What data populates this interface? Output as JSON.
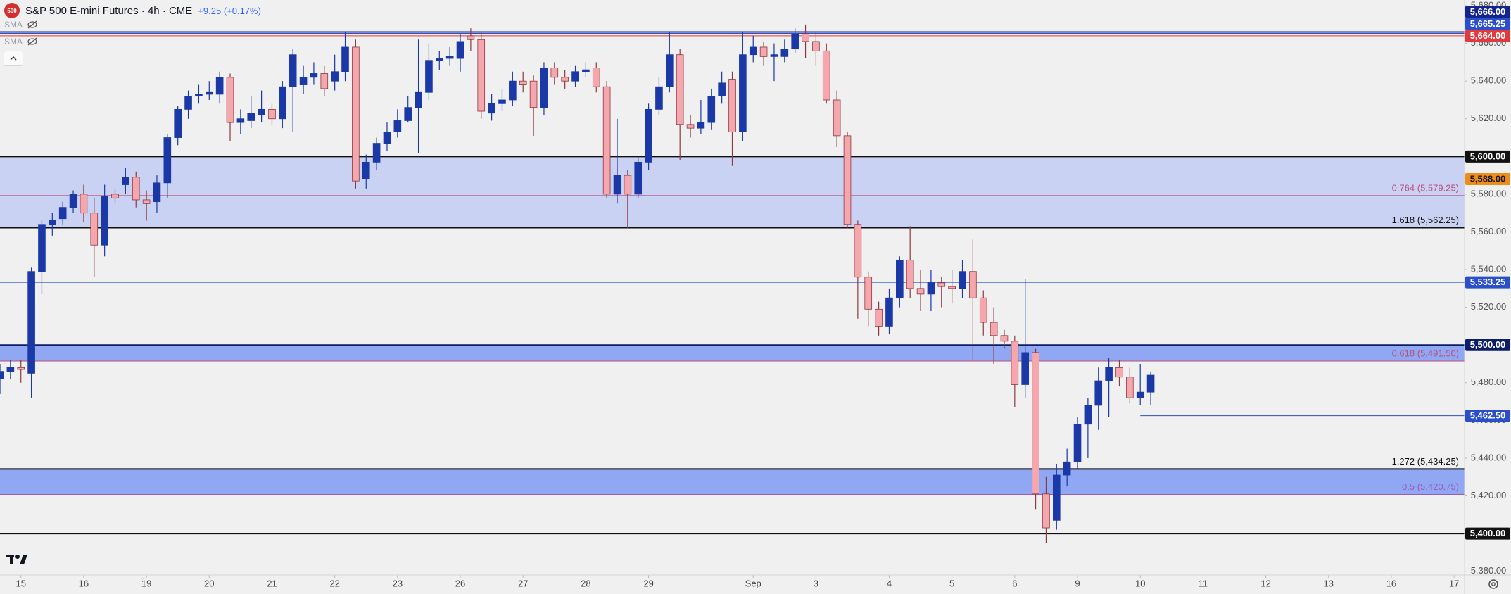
{
  "header": {
    "title": "S&P 500 E-mini Futures · 4h · CME",
    "change": "+9.25 (+0.17%)",
    "indicators": [
      "SMA",
      "SMA"
    ]
  },
  "chart_data": {
    "type": "candlestick",
    "open": [
      5482,
      5486,
      5488,
      5485,
      5539,
      5564,
      5567,
      5573,
      5580,
      5570,
      5553,
      5580,
      5585,
      5589,
      5577,
      5576,
      5586,
      5610,
      5625,
      5632,
      5633,
      5633,
      5642,
      5618,
      5619,
      5622,
      5625,
      5620,
      5637,
      5638,
      5642,
      5644,
      5640,
      5645,
      5658,
      5588,
      5597,
      5607,
      5613,
      5619,
      5626,
      5634,
      5651,
      5652,
      5652,
      5664,
      5662,
      5623,
      5628,
      5630,
      5640,
      5640,
      5626,
      5647,
      5642,
      5640,
      5645,
      5647,
      5637,
      5580,
      5590,
      5580,
      5597,
      5625,
      5637,
      5654,
      5617,
      5615,
      5618,
      5632,
      5641,
      5613,
      5654,
      5658,
      5653,
      5653,
      5657,
      5665,
      5661,
      5656,
      5630,
      5611,
      5564,
      5536,
      5519,
      5510,
      5525,
      5545,
      5530,
      5527,
      5533,
      5531,
      5530,
      5539,
      5525,
      5512,
      5505,
      5502,
      5479,
      5496,
      5421,
      5407,
      5431,
      5438,
      5458,
      5468,
      5481,
      5488,
      5483,
      5472,
      5475
    ],
    "high": [
      5490,
      5492,
      5492,
      5541,
      5566,
      5570,
      5576,
      5582,
      5585,
      5578,
      5585,
      5583,
      5594,
      5592,
      5582,
      5590,
      5612,
      5627,
      5635,
      5638,
      5640,
      5645,
      5644,
      5625,
      5632,
      5635,
      5628,
      5640,
      5657,
      5648,
      5650,
      5648,
      5654,
      5666,
      5662,
      5601,
      5610,
      5618,
      5625,
      5632,
      5662,
      5660,
      5656,
      5658,
      5665,
      5668,
      5666,
      5633,
      5636,
      5645,
      5645,
      5643,
      5650,
      5650,
      5646,
      5648,
      5650,
      5650,
      5640,
      5620,
      5593,
      5600,
      5628,
      5642,
      5666,
      5657,
      5622,
      5630,
      5636,
      5645,
      5645,
      5666,
      5664,
      5661,
      5660,
      5662,
      5668,
      5670,
      5666,
      5660,
      5635,
      5613,
      5566,
      5539,
      5523,
      5530,
      5547,
      5563,
      5540,
      5540,
      5536,
      5540,
      5545,
      5556,
      5529,
      5520,
      5508,
      5505,
      5535,
      5498,
      5430,
      5437,
      5445,
      5462,
      5472,
      5488,
      5493,
      5492,
      5488,
      5490,
      5486
    ],
    "low": [
      5474,
      5482,
      5480,
      5472,
      5527,
      5558,
      5564,
      5570,
      5565,
      5536,
      5547,
      5575,
      5580,
      5573,
      5566,
      5570,
      5578,
      5606,
      5620,
      5628,
      5630,
      5628,
      5608,
      5612,
      5615,
      5618,
      5617,
      5615,
      5613,
      5633,
      5638,
      5632,
      5635,
      5640,
      5583,
      5583,
      5593,
      5603,
      5610,
      5618,
      5602,
      5630,
      5646,
      5648,
      5645,
      5656,
      5620,
      5619,
      5624,
      5627,
      5634,
      5611,
      5622,
      5638,
      5636,
      5637,
      5642,
      5634,
      5578,
      5575,
      5562,
      5578,
      5593,
      5622,
      5634,
      5598,
      5610,
      5612,
      5614,
      5628,
      5595,
      5608,
      5650,
      5648,
      5640,
      5650,
      5655,
      5652,
      5648,
      5628,
      5605,
      5562,
      5514,
      5510,
      5505,
      5506,
      5520,
      5525,
      5518,
      5518,
      5520,
      5522,
      5525,
      5492,
      5505,
      5490,
      5498,
      5467,
      5472,
      5413,
      5395,
      5402,
      5425,
      5434,
      5440,
      5455,
      5462,
      5478,
      5469,
      5468,
      5468
    ],
    "close": [
      5486,
      5488,
      5487,
      5539,
      5564,
      5566,
      5573,
      5580,
      5570,
      5553,
      5579,
      5578,
      5589,
      5577,
      5575,
      5586,
      5610,
      5625,
      5632,
      5633,
      5634,
      5642,
      5618,
      5620,
      5623,
      5625,
      5620,
      5637,
      5654,
      5642,
      5644,
      5636,
      5645,
      5658,
      5587,
      5597,
      5607,
      5613,
      5619,
      5626,
      5634,
      5651,
      5652,
      5653,
      5661,
      5662,
      5624,
      5628,
      5630,
      5640,
      5638,
      5626,
      5647,
      5642,
      5640,
      5645,
      5646,
      5637,
      5580,
      5590,
      5580,
      5597,
      5625,
      5637,
      5654,
      5617,
      5615,
      5618,
      5632,
      5639,
      5613,
      5654,
      5658,
      5653,
      5654,
      5657,
      5665,
      5661,
      5656,
      5630,
      5611,
      5564,
      5536,
      5519,
      5510,
      5525,
      5545,
      5530,
      5527,
      5533,
      5531,
      5530,
      5539,
      5525,
      5512,
      5505,
      5502,
      5479,
      5496,
      5421,
      5403,
      5431,
      5438,
      5458,
      5468,
      5481,
      5488,
      5483,
      5472,
      5475,
      5484
    ],
    "up_color": "#1a38a6",
    "down_color": "#f6a7ad",
    "down_border": "#8a3a40",
    "xlim": [
      0,
      140
    ],
    "ylim": [
      5378,
      5683
    ],
    "xticks": [
      {
        "value": 2,
        "label": "15"
      },
      {
        "value": 8,
        "label": "16"
      },
      {
        "value": 14,
        "label": "19"
      },
      {
        "value": 20,
        "label": "20"
      },
      {
        "value": 26,
        "label": "21"
      },
      {
        "value": 32,
        "label": "22"
      },
      {
        "value": 38,
        "label": "23"
      },
      {
        "value": 44,
        "label": "26"
      },
      {
        "value": 50,
        "label": "27"
      },
      {
        "value": 56,
        "label": "28"
      },
      {
        "value": 62,
        "label": "29"
      },
      {
        "value": 72,
        "label": "Sep"
      },
      {
        "value": 78,
        "label": "3"
      },
      {
        "value": 85,
        "label": "4"
      },
      {
        "value": 91,
        "label": "5"
      },
      {
        "value": 97,
        "label": "6"
      },
      {
        "value": 103,
        "label": "9"
      },
      {
        "value": 109,
        "label": "10"
      },
      {
        "value": 115,
        "label": "11"
      },
      {
        "value": 121,
        "label": "12"
      },
      {
        "value": 127,
        "label": "13"
      },
      {
        "value": 133,
        "label": "16"
      },
      {
        "value": 139,
        "label": "17"
      }
    ],
    "yticks": [
      {
        "value": 5380,
        "label": "5,380.00"
      },
      {
        "value": 5400,
        "label": "5,400.00"
      },
      {
        "value": 5420,
        "label": "5,420.00"
      },
      {
        "value": 5440,
        "label": "5,440.00"
      },
      {
        "value": 5460,
        "label": "5,460.00"
      },
      {
        "value": 5480,
        "label": "5,480.00"
      },
      {
        "value": 5500,
        "label": "5,500.00"
      },
      {
        "value": 5520,
        "label": "5,520.00"
      },
      {
        "value": 5540,
        "label": "5,540.00"
      },
      {
        "value": 5560,
        "label": "5,560.00"
      },
      {
        "value": 5580,
        "label": "5,580.00"
      },
      {
        "value": 5600,
        "label": "5,600.00"
      },
      {
        "value": 5620,
        "label": "5,620.00"
      },
      {
        "value": 5640,
        "label": "5,640.00"
      },
      {
        "value": 5660,
        "label": "5,660.00"
      },
      {
        "value": 5680,
        "label": "5,680.00"
      }
    ],
    "zones": [
      {
        "from": 5562.25,
        "to": 5600,
        "color": "#c3ccf3"
      },
      {
        "from": 5491.5,
        "to": 5500,
        "color": "#7f9bf3"
      },
      {
        "from": 5420.75,
        "to": 5434.25,
        "color": "#7f9bf3"
      }
    ],
    "levels": [
      {
        "value": 5666,
        "label": "5,666.00",
        "color": "#13258c",
        "weight": "heavy"
      },
      {
        "value": 5665.25,
        "label": "5,665.25",
        "color": "#2a4fc8",
        "weight": "light"
      },
      {
        "value": 5664,
        "label": "5,664.00",
        "color": "#e0393e",
        "weight": "light"
      },
      {
        "value": 5600,
        "label": "5,600.00",
        "color": "#111111",
        "weight": "heavy"
      },
      {
        "value": 5588,
        "label": "5,588.00",
        "color": "#f08c1a",
        "weight": "light"
      },
      {
        "value": 5533.25,
        "label": "5,533.25",
        "color": "#2a4fc8",
        "weight": "light"
      },
      {
        "value": 5500,
        "label": "5,500.00",
        "color": "#0c1e66",
        "weight": "heavy"
      },
      {
        "value": 5462.5,
        "label": "5,462.50",
        "color": "#2a4fc8",
        "weight": "light",
        "ray": true
      },
      {
        "value": 5400,
        "label": "5,400.00",
        "color": "#111111",
        "weight": "heavy"
      }
    ],
    "fib_levels": [
      {
        "value": 5579.25,
        "label": "0.764 (5,579.25)",
        "color": "#b9507e",
        "weight": "light"
      },
      {
        "value": 5562.25,
        "label": "1.618 (5,562.25)",
        "color": "#111111",
        "weight": "heavy"
      },
      {
        "value": 5491.5,
        "label": "0.618 (5,491.50)",
        "color": "#b9507e",
        "weight": "light"
      },
      {
        "value": 5434.25,
        "label": "1.272 (5,434.25)",
        "color": "#111111",
        "weight": "heavy"
      },
      {
        "value": 5420.75,
        "label": "0.5 (5,420.75)",
        "color": "#9a5ab8",
        "weight": "light"
      }
    ]
  }
}
